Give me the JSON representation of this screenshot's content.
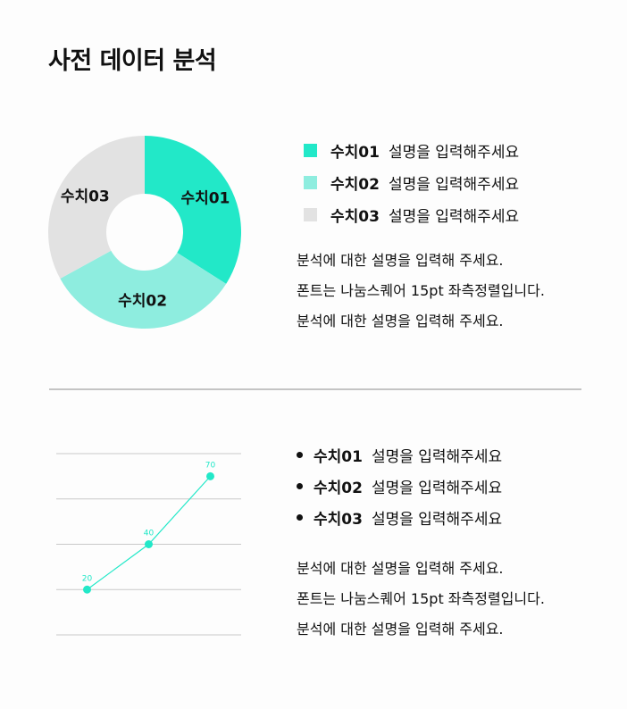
{
  "page": {
    "title": "사전 데이터 분석"
  },
  "section1": {
    "legend": [
      {
        "series": "수치01",
        "description": "설명을 입력해주세요",
        "color": "#22e8c8"
      },
      {
        "series": "수치02",
        "description": "설명을 입력해주세요",
        "color": "#8eeddf"
      },
      {
        "series": "수치03",
        "description": "설명을 입력해주세요",
        "color": "#e2e2e2"
      }
    ],
    "paragraph": [
      "분석에 대한 설명을 입력해 주세요.",
      "폰트는 나눔스퀘어 15pt 좌측정렬입니다.",
      "분석에 대한 설명을 입력해 주세요."
    ]
  },
  "section2": {
    "bullets": [
      {
        "series": "수치01",
        "description": "설명을 입력해주세요"
      },
      {
        "series": "수치02",
        "description": "설명을 입력해주세요"
      },
      {
        "series": "수치03",
        "description": "설명을 입력해주세요"
      }
    ],
    "paragraph": [
      "분석에 대한 설명을 입력해 주세요.",
      "폰트는 나눔스퀘어 15pt 좌측정렬입니다.",
      "분석에 대한 설명을 입력해 주세요."
    ]
  },
  "chart_data": [
    {
      "type": "pie",
      "donut": true,
      "categories": [
        "수치01",
        "수치02",
        "수치03"
      ],
      "values": [
        34,
        33,
        33
      ],
      "colors": [
        "#22e8c8",
        "#8eeddf",
        "#e2e2e2"
      ],
      "slice_labels": [
        "수치01",
        "수치02",
        "수치03"
      ],
      "start_angle": "12 o'clock, clockwise"
    },
    {
      "type": "line",
      "x": [
        1,
        2,
        3
      ],
      "values": [
        20,
        40,
        70
      ],
      "data_labels": [
        "20",
        "40",
        "70"
      ],
      "ylim": [
        0,
        80
      ],
      "grid": true,
      "color": "#22e8c8"
    }
  ]
}
